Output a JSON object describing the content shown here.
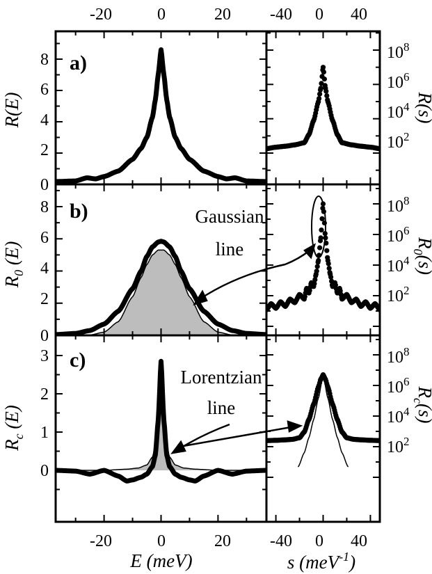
{
  "chart_data": [
    {
      "panel": "a)",
      "type": "line",
      "scale": "linear",
      "xlabel": "E (meV)",
      "ylabel": "R(E)",
      "xlim": [
        -37,
        37
      ],
      "ylim": [
        0,
        9.5
      ],
      "xticks": [
        -20,
        0,
        20
      ],
      "yticks": [
        0,
        2,
        4,
        6,
        8
      ],
      "series": [
        {
          "x": [
            -37,
            -30,
            -26,
            -23,
            -20,
            -15,
            -10,
            -7,
            -5,
            -3,
            -2,
            -1,
            0,
            1,
            2,
            3,
            5,
            7,
            10,
            15,
            20,
            23,
            26,
            30,
            37
          ],
          "values": [
            0.18,
            0.22,
            0.42,
            0.35,
            0.5,
            0.85,
            1.6,
            2.3,
            3.0,
            4.3,
            5.4,
            7.0,
            8.6,
            7.0,
            5.4,
            4.3,
            3.0,
            2.3,
            1.6,
            0.85,
            0.5,
            0.35,
            0.42,
            0.22,
            0.18
          ]
        }
      ]
    },
    {
      "panel": "a)",
      "type": "scatter",
      "scale": "log",
      "xlabel": "",
      "ylabel": "R(s)",
      "xlim": [
        -48,
        48
      ],
      "ylim": [
        5,
        1000000000
      ],
      "xticks": [
        -40,
        0,
        40
      ],
      "yticks": [
        100,
        10000,
        1000000,
        100000000
      ],
      "ytick_labels": [
        "10^2",
        "10^4",
        "10^6",
        "10^8"
      ],
      "series": [
        {
          "x": [
            -48,
            -40,
            -32,
            -24,
            -16,
            -12,
            -8,
            -4,
            -2,
            0,
            2,
            4,
            8,
            12,
            16,
            24,
            32,
            40,
            48
          ],
          "values": [
            180,
            220,
            250,
            300,
            400,
            1200,
            8000,
            100000,
            600000,
            10000000,
            600000,
            100000,
            8000,
            1200,
            400,
            300,
            250,
            220,
            180
          ]
        }
      ]
    },
    {
      "panel": "b)",
      "type": "area",
      "scale": "linear",
      "xlabel": "",
      "ylabel": "R_0 (E)",
      "xlim": [
        -37,
        37
      ],
      "ylim": [
        0,
        9.5
      ],
      "xticks": [
        -20,
        0,
        20
      ],
      "yticks": [
        0,
        2,
        4,
        6,
        8
      ],
      "annotation": [
        "Gaussian",
        "line"
      ],
      "series": [
        {
          "x": [
            -37,
            -30,
            -25,
            -20,
            -15,
            -10,
            -7,
            -5,
            -3,
            -1,
            0,
            1,
            3,
            5,
            7,
            10,
            15,
            20,
            25,
            30,
            37
          ],
          "values": [
            0.05,
            0.12,
            0.3,
            0.7,
            1.5,
            2.9,
            4.0,
            4.9,
            5.5,
            5.8,
            5.85,
            5.8,
            5.5,
            4.9,
            4.0,
            2.9,
            1.5,
            0.7,
            0.3,
            0.12,
            0.05
          ]
        },
        {
          "x": [
            -37,
            -30,
            -25,
            -20,
            -15,
            -10,
            -7,
            -5,
            -3,
            -1,
            0,
            1,
            3,
            5,
            7,
            10,
            15,
            20,
            25,
            30,
            37
          ],
          "values": [
            0,
            0.0,
            0.02,
            0.2,
            0.85,
            2.4,
            3.6,
            4.4,
            5.0,
            5.3,
            5.3,
            5.3,
            5.0,
            4.4,
            3.6,
            2.4,
            0.85,
            0.2,
            0.02,
            0.0,
            0
          ]
        }
      ]
    },
    {
      "panel": "b)",
      "type": "scatter",
      "scale": "log",
      "xlabel": "",
      "ylabel": "R_0 (s)",
      "xlim": [
        -48,
        48
      ],
      "ylim": [
        5,
        1000000000
      ],
      "xticks": [
        -40,
        0,
        40
      ],
      "yticks": [
        100,
        10000,
        1000000,
        100000000
      ],
      "ytick_labels": [
        "10^2",
        "10^4",
        "10^6",
        "10^8"
      ],
      "series": [
        {
          "x": [
            -48,
            -44,
            -40,
            -36,
            -32,
            -28,
            -24,
            -20,
            -16,
            -14,
            -12,
            -10,
            -8,
            -6,
            -4,
            -2,
            0,
            2,
            4,
            6,
            8,
            10,
            12,
            14,
            16,
            20,
            24,
            28,
            32,
            36,
            40,
            44,
            48
          ],
          "values": [
            12,
            30,
            15,
            40,
            20,
            60,
            35,
            120,
            60,
            300,
            150,
            700,
            400,
            2500,
            20000,
            600000,
            100000000,
            600000,
            20000,
            2500,
            400,
            700,
            150,
            300,
            60,
            120,
            35,
            60,
            20,
            40,
            15,
            30,
            12
          ]
        }
      ]
    },
    {
      "panel": "c)",
      "type": "area",
      "scale": "linear",
      "xlabel": "E (meV)",
      "ylabel": "R_c (E)",
      "xlim": [
        -37,
        37
      ],
      "ylim": [
        -0.45,
        3.2
      ],
      "xticks": [
        -20,
        0,
        20
      ],
      "yticks": [
        0,
        1,
        2,
        3
      ],
      "annotation": [
        "Lorentzian",
        "line"
      ],
      "series": [
        {
          "x": [
            -37,
            -30,
            -25,
            -20,
            -15,
            -12,
            -10,
            -7,
            -5,
            -3,
            -2,
            -1,
            0,
            1,
            2,
            3,
            5,
            7,
            10,
            12,
            15,
            20,
            25,
            30,
            37
          ],
          "values": [
            0,
            -0.02,
            -0.1,
            0.0,
            -0.15,
            -0.28,
            -0.25,
            -0.18,
            -0.1,
            0.1,
            0.4,
            1.3,
            2.85,
            1.3,
            0.4,
            0.1,
            -0.1,
            -0.18,
            -0.25,
            -0.28,
            -0.15,
            0.0,
            -0.1,
            -0.02,
            0
          ]
        },
        {
          "x": [
            -37,
            -20,
            -12,
            -8,
            -5,
            -3,
            -2,
            -1,
            0,
            1,
            2,
            3,
            5,
            8,
            12,
            20,
            37
          ],
          "values": [
            0,
            0,
            0.03,
            0.06,
            0.14,
            0.35,
            0.65,
            1.4,
            2.75,
            1.4,
            0.65,
            0.35,
            0.14,
            0.06,
            0.03,
            0,
            0
          ]
        }
      ]
    },
    {
      "panel": "c)",
      "type": "scatter",
      "scale": "log",
      "xlabel": "s (meV^-1)",
      "ylabel": "R_c (s)",
      "xlim": [
        -48,
        48
      ],
      "ylim": [
        5,
        1000000000
      ],
      "xticks": [
        -40,
        0,
        40
      ],
      "yticks": [
        100,
        10000,
        1000000,
        100000000
      ],
      "ytick_labels": [
        "10^2",
        "10^4",
        "10^6",
        "10^8"
      ],
      "series": [
        {
          "x": [
            -48,
            -40,
            -32,
            -26,
            -20,
            -16,
            -12,
            -8,
            -4,
            -2,
            0,
            2,
            4,
            8,
            12,
            16,
            20,
            26,
            32,
            40,
            48
          ],
          "values": [
            250,
            260,
            280,
            300,
            380,
            900,
            6000,
            60000,
            800000,
            2500000,
            5000000,
            2500000,
            800000,
            60000,
            6000,
            900,
            380,
            300,
            280,
            260,
            250
          ]
        },
        {
          "x": [
            -21,
            -16,
            -12,
            -8,
            -4,
            0,
            4,
            8,
            12,
            16,
            21
          ],
          "values": [
            5,
            40,
            400,
            6000,
            150000,
            5000000,
            150000,
            6000,
            400,
            40,
            5
          ]
        }
      ]
    }
  ],
  "labels": {
    "top_ticks_left": [
      "-20",
      "0",
      "20"
    ],
    "top_ticks_right": [
      "-40",
      "0",
      "40"
    ],
    "bottom_ticks_left": [
      "-20",
      "0",
      "20"
    ],
    "bottom_ticks_right": [
      "-40",
      "0",
      "40"
    ],
    "ylab_a_left": [
      "8",
      "6",
      "4",
      "2",
      "0"
    ],
    "ylab_b_left": [
      "8",
      "6",
      "4",
      "2",
      "0"
    ],
    "ylab_c_left": [
      "3",
      "2",
      "1",
      "0"
    ],
    "xtitle_left": "E (meV)",
    "xtitle_right_main": "s (meV",
    "xtitle_right_sup": "-1",
    "xtitle_right_end": ")",
    "panel_a": "a)",
    "panel_b": "b)",
    "panel_c": "c)",
    "gaussian_1": "Gaussian",
    "gaussian_2": "line",
    "lorentz_1": "Lorentzian",
    "lorentz_2": "line",
    "ylab_a_left_title": "R(E)",
    "ylab_b_left_main": "R",
    "ylab_b_left_sub": "0",
    "ylab_b_left_end": " (E)",
    "ylab_c_left_main": "R",
    "ylab_c_left_sub": "c",
    "ylab_c_left_end": " (E)",
    "ylab_a_right": "R(s)",
    "ylab_b_right_main": "R",
    "ylab_b_right_sub": "0",
    "ylab_b_right_end": "(s)",
    "ylab_c_right_main": "R",
    "ylab_c_right_sub": "c",
    "ylab_c_right_end": "(s)",
    "log_base": "10",
    "log_exps": [
      "8",
      "6",
      "4",
      "2"
    ]
  }
}
